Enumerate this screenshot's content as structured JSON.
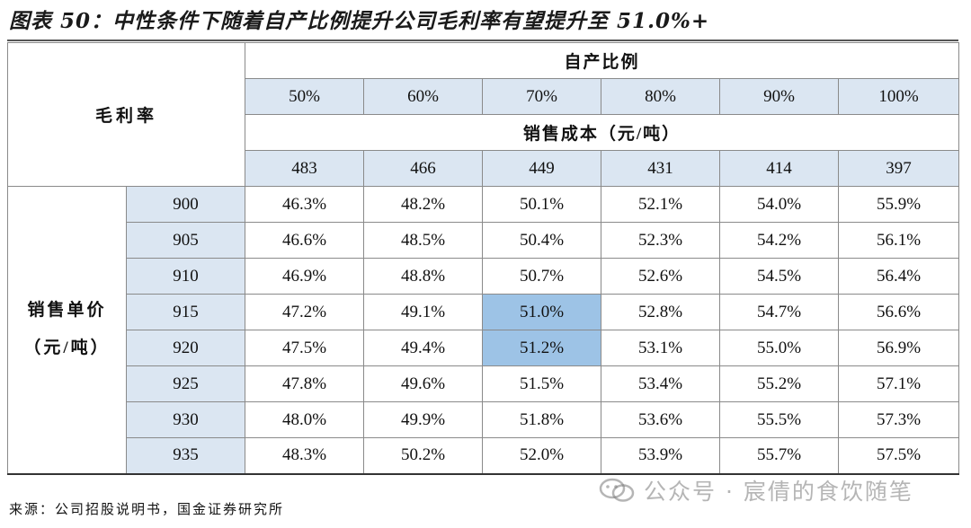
{
  "figure_title": "图表 50：中性条件下随着自产比例提升公司毛利率有望提升至 51.0%+",
  "table": {
    "corner_label": "毛利率",
    "self_ratio_label": "自产比例",
    "cost_label": "销售成本（元/吨）",
    "price_label_line1": "销售单价",
    "price_label_line2": "（元/吨）",
    "ratios": [
      "50%",
      "60%",
      "70%",
      "80%",
      "90%",
      "100%"
    ],
    "costs": [
      "483",
      "466",
      "449",
      "431",
      "414",
      "397"
    ],
    "rows": [
      {
        "price": "900",
        "values": [
          "46.3%",
          "48.2%",
          "50.1%",
          "52.1%",
          "54.0%",
          "55.9%"
        ]
      },
      {
        "price": "905",
        "values": [
          "46.6%",
          "48.5%",
          "50.4%",
          "52.3%",
          "54.2%",
          "56.1%"
        ]
      },
      {
        "price": "910",
        "values": [
          "46.9%",
          "48.8%",
          "50.7%",
          "52.6%",
          "54.5%",
          "56.4%"
        ]
      },
      {
        "price": "915",
        "values": [
          "47.2%",
          "49.1%",
          "51.0%",
          "52.8%",
          "54.7%",
          "56.6%"
        ]
      },
      {
        "price": "920",
        "values": [
          "47.5%",
          "49.4%",
          "51.2%",
          "53.1%",
          "55.0%",
          "56.9%"
        ]
      },
      {
        "price": "925",
        "values": [
          "47.8%",
          "49.6%",
          "51.5%",
          "53.4%",
          "55.2%",
          "57.1%"
        ]
      },
      {
        "price": "930",
        "values": [
          "48.0%",
          "49.9%",
          "51.8%",
          "53.6%",
          "55.5%",
          "57.3%"
        ]
      },
      {
        "price": "935",
        "values": [
          "48.3%",
          "50.2%",
          "52.0%",
          "53.9%",
          "55.7%",
          "57.5%"
        ]
      }
    ]
  },
  "source": "来源：公司招股说明书，国金证券研究所",
  "watermark": "公众号 · 宸倩的食饮随笔",
  "colors": {
    "header_fill": "#dbe6f2",
    "highlight_fill": "#9dc3e6"
  }
}
